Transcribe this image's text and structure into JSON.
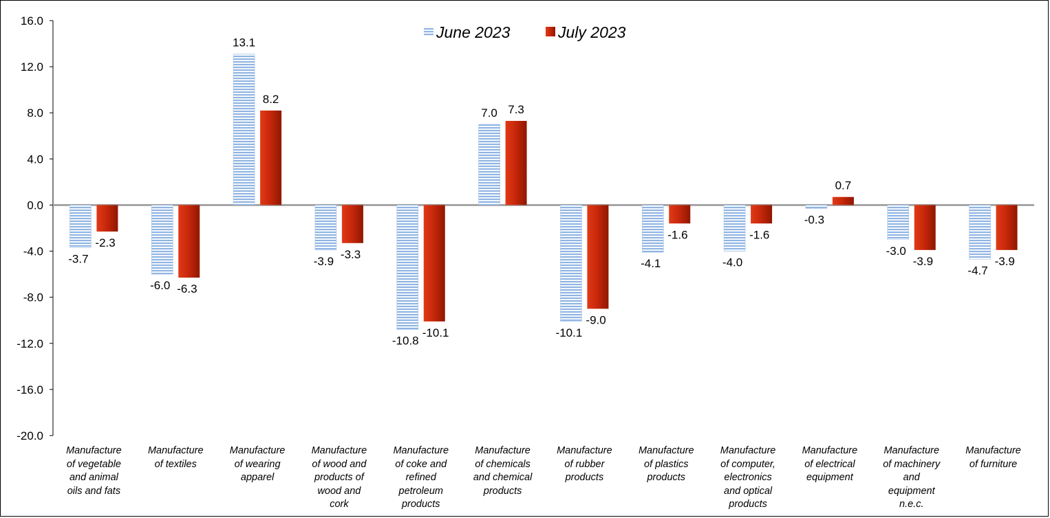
{
  "chart_data": {
    "type": "bar",
    "categories": [
      "Manufacture of vegetable and animal oils and fats",
      "Manufacture of textiles",
      "Manufacture of wearing apparel",
      "Manufacture of wood and products of wood and cork",
      "Manufacture of coke and refined petroleum products",
      "Manufacture of chemicals and chemical products",
      "Manufacture of rubber products",
      "Manufacture of plastics products",
      "Manufacture of computer, electronics and optical products",
      "Manufacture of electrical equipment",
      "Manufacture of machinery and equipment n.e.c.",
      "Manufacture of furniture"
    ],
    "category_lines": [
      [
        "Manufacture",
        "of vegetable",
        "and animal",
        "oils and fats"
      ],
      [
        "Manufacture",
        "of textiles"
      ],
      [
        "Manufacture",
        "of wearing",
        "apparel"
      ],
      [
        "Manufacture",
        "of wood and",
        "products of",
        "wood and",
        "cork"
      ],
      [
        "Manufacture",
        "of coke and",
        "refined",
        "petroleum",
        "products"
      ],
      [
        "Manufacture",
        "of chemicals",
        "and chemical",
        "products"
      ],
      [
        "Manufacture",
        "of rubber",
        "products"
      ],
      [
        "Manufacture",
        "of plastics",
        "products"
      ],
      [
        "Manufacture",
        "of computer,",
        "electronics",
        "and optical",
        "products"
      ],
      [
        "Manufacture",
        "of electrical",
        "equipment"
      ],
      [
        "Manufacture",
        "of machinery",
        "and",
        "equipment",
        "n.e.c."
      ],
      [
        "Manufacture",
        "of furniture"
      ]
    ],
    "series": [
      {
        "name": "June 2023",
        "color": "#8fb4e3",
        "values": [
          -3.7,
          -6.0,
          13.1,
          -3.9,
          -10.8,
          7.0,
          -10.1,
          -4.1,
          -4.0,
          -0.3,
          -3.0,
          -4.7
        ],
        "labels": [
          "-3.7",
          "-6.0",
          "13.1",
          "-3.9",
          "-10.8",
          "7.0",
          "-10.1",
          "-4.1",
          "-4.0",
          "-0.3",
          "-3.0",
          "-4.7"
        ]
      },
      {
        "name": "July 2023",
        "color": "#c0290e",
        "values": [
          -2.3,
          -6.3,
          8.2,
          -3.3,
          -10.1,
          7.3,
          -9.0,
          -1.6,
          -1.6,
          0.7,
          -3.9,
          -3.9
        ],
        "labels": [
          "-2.3",
          "-6.3",
          "8.2",
          "-3.3",
          "-10.1",
          "7.3",
          "-9.0",
          "-1.6",
          "-1.6",
          "0.7",
          "-3.9",
          "-3.9"
        ]
      }
    ],
    "y_ticks": [
      "16.0",
      "12.0",
      "8.0",
      "4.0",
      "0.0",
      "-4.0",
      "-8.0",
      "-12.0",
      "-16.0",
      "-20.0"
    ],
    "ylim": [
      -20,
      16
    ],
    "legend_position": "top-center",
    "grid": false
  }
}
